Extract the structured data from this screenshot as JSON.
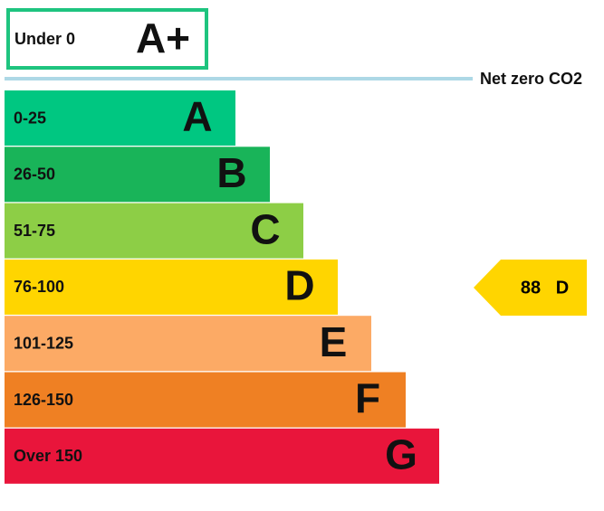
{
  "top_band": {
    "range": "Under 0",
    "letter": "A+"
  },
  "net_zero_label": "Net zero CO2",
  "bands": [
    {
      "range": "0-25",
      "letter": "A"
    },
    {
      "range": "26-50",
      "letter": "B"
    },
    {
      "range": "51-75",
      "letter": "C"
    },
    {
      "range": "76-100",
      "letter": "D"
    },
    {
      "range": "101-125",
      "letter": "E"
    },
    {
      "range": "126-150",
      "letter": "F"
    },
    {
      "range": "Over 150",
      "letter": "G"
    }
  ],
  "current": {
    "score": "88",
    "letter": "D"
  }
}
